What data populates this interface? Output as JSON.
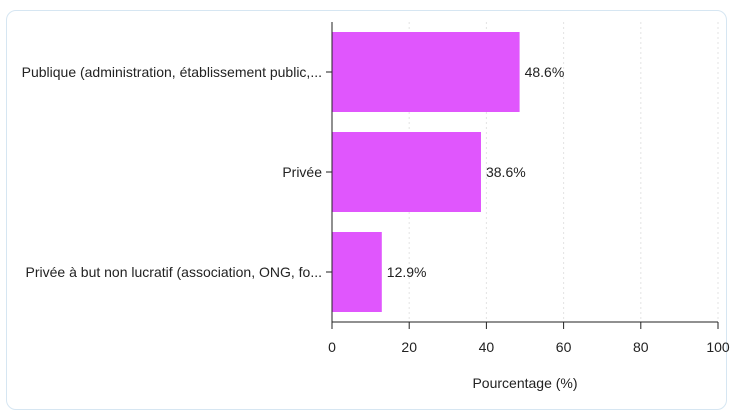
{
  "chart_data": {
    "type": "bar",
    "orientation": "horizontal",
    "categories": [
      "Publique (administration, établissement public,...",
      "Privée",
      "Privée à but non lucratif (association, ONG, fo..."
    ],
    "values": [
      48.6,
      38.6,
      12.9
    ],
    "value_labels": [
      "48.6%",
      "38.6%",
      "12.9%"
    ],
    "title": "",
    "xlabel": "Pourcentage (%)",
    "ylabel": "",
    "xlim": [
      0,
      100
    ],
    "xticks": [
      0,
      20,
      40,
      60,
      80,
      100
    ],
    "grid": "vertical dotted",
    "bar_color": "#e056fd"
  }
}
